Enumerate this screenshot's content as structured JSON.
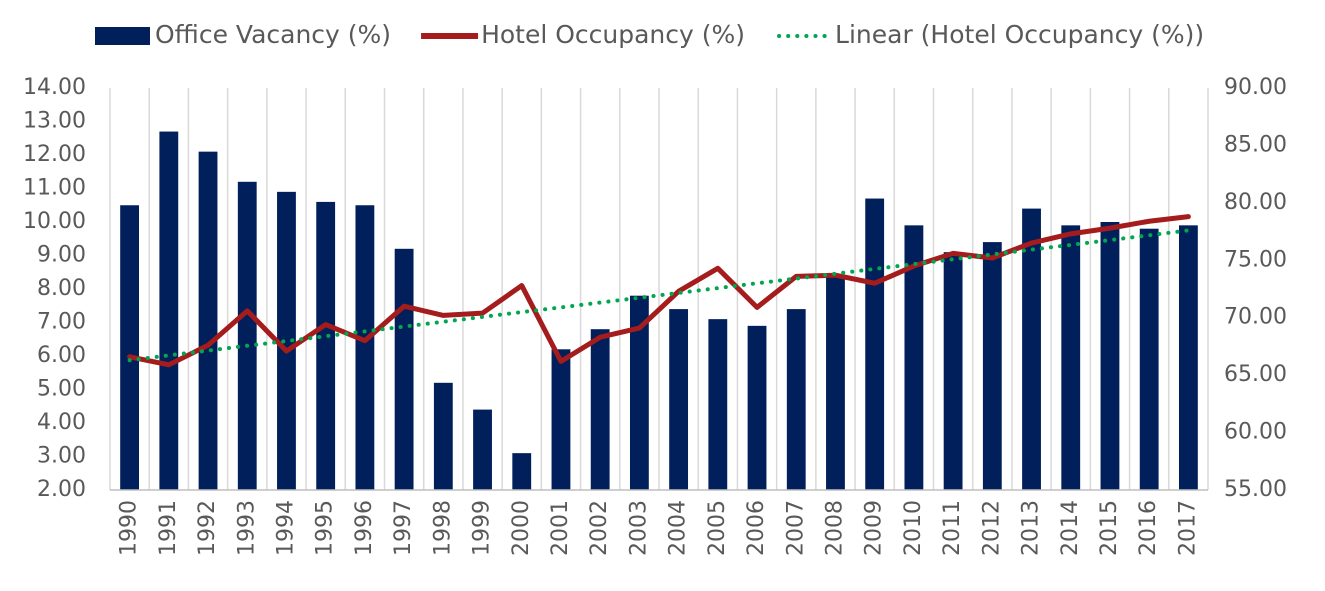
{
  "chart_data": {
    "type": "bar",
    "categories": [
      "1990",
      "1991",
      "1992",
      "1993",
      "1994",
      "1995",
      "1996",
      "1997",
      "1998",
      "1999",
      "2000",
      "2001",
      "2002",
      "2003",
      "2004",
      "2005",
      "2006",
      "2007",
      "2008",
      "2009",
      "2010",
      "2011",
      "2012",
      "2013",
      "2014",
      "2015",
      "2016",
      "2017"
    ],
    "series": [
      {
        "name": "Office Vacancy (%)",
        "type": "bar",
        "color": "#001f5b",
        "values": [
          10.5,
          12.7,
          12.1,
          11.2,
          10.9,
          10.6,
          10.5,
          9.2,
          5.2,
          4.4,
          3.1,
          6.2,
          6.8,
          7.8,
          7.4,
          7.1,
          6.9,
          7.4,
          8.4,
          10.7,
          9.9,
          9.1,
          9.4,
          10.4,
          9.9,
          10.0,
          9.8,
          9.9
        ]
      },
      {
        "name": "Hotel Occupancy (%)",
        "type": "line",
        "axis": "y2",
        "color": "#a51c1c",
        "values": [
          66.6,
          65.9,
          67.6,
          70.6,
          67.1,
          69.4,
          68.0,
          71.0,
          70.2,
          70.4,
          72.8,
          66.2,
          68.3,
          69.1,
          72.3,
          74.3,
          70.9,
          73.6,
          73.7,
          73.0,
          74.5,
          75.6,
          75.2,
          76.5,
          77.3,
          77.8,
          78.4,
          78.8
        ]
      },
      {
        "name": "Linear (Hotel Occupancy (%))",
        "type": "line",
        "dash": "dotted",
        "axis": "y2",
        "color": "#00a650",
        "values": [
          66.3,
          66.72,
          67.14,
          67.56,
          67.97,
          68.39,
          68.81,
          69.23,
          69.65,
          70.07,
          70.49,
          70.9,
          71.32,
          71.74,
          72.16,
          72.58,
          73.0,
          73.41,
          73.83,
          74.25,
          74.67,
          75.09,
          75.51,
          75.93,
          76.34,
          76.76,
          77.18,
          77.6
        ]
      }
    ],
    "ylim": [
      2,
      14
    ],
    "yticks": [
      {
        "value": 2,
        "label": "2.00"
      },
      {
        "value": 3,
        "label": "3.00"
      },
      {
        "value": 4,
        "label": "4.00"
      },
      {
        "value": 5,
        "label": "5.00"
      },
      {
        "value": 6,
        "label": "6.00"
      },
      {
        "value": 7,
        "label": "7.00"
      },
      {
        "value": 8,
        "label": "8.00"
      },
      {
        "value": 9,
        "label": "9.00"
      },
      {
        "value": 10,
        "label": "10.00"
      },
      {
        "value": 11,
        "label": "11.00"
      },
      {
        "value": 12,
        "label": "12.00"
      },
      {
        "value": 13,
        "label": "13.00"
      },
      {
        "value": 14,
        "label": "14.00"
      }
    ],
    "y2lim": [
      55,
      90
    ],
    "y2ticks": [
      {
        "value": 55,
        "label": "55.00"
      },
      {
        "value": 60,
        "label": "60.00"
      },
      {
        "value": 65,
        "label": "65.00"
      },
      {
        "value": 70,
        "label": "70.00"
      },
      {
        "value": 75,
        "label": "75.00"
      },
      {
        "value": 80,
        "label": "80.00"
      },
      {
        "value": 85,
        "label": "85.00"
      },
      {
        "value": 90,
        "label": "90.00"
      }
    ],
    "legend": "top"
  }
}
